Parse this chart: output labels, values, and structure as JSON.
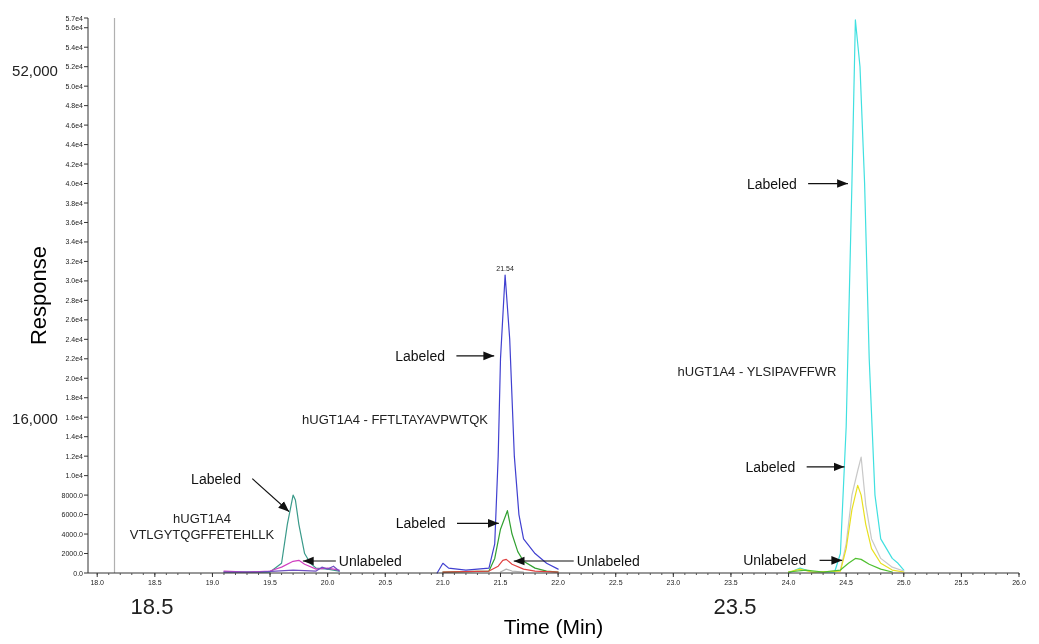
{
  "chart_data": {
    "type": "line",
    "xlabel": "Time (Min)",
    "ylabel": "Response",
    "xlim": [
      17.92,
      26.0
    ],
    "ylim": [
      0,
      57000
    ],
    "xticks": [
      {
        "value": 18,
        "label": "18.0"
      },
      {
        "value": 18.5,
        "label": "18.5"
      },
      {
        "value": 19,
        "label": "19.0"
      },
      {
        "value": 19.5,
        "label": "19.5"
      },
      {
        "value": 20,
        "label": "20.0"
      },
      {
        "value": 20.5,
        "label": "20.5"
      },
      {
        "value": 21,
        "label": "21.0"
      },
      {
        "value": 21.5,
        "label": "21.5"
      },
      {
        "value": 22,
        "label": "22.0"
      },
      {
        "value": 22.5,
        "label": "22.5"
      },
      {
        "value": 23,
        "label": "23.0"
      },
      {
        "value": 23.5,
        "label": "23.5"
      },
      {
        "value": 24,
        "label": "24.0"
      },
      {
        "value": 24.5,
        "label": "24.5"
      },
      {
        "value": 25,
        "label": "25.0"
      },
      {
        "value": 25.5,
        "label": "25.5"
      },
      {
        "value": 26,
        "label": "26.0"
      }
    ],
    "yticks": [
      {
        "value": 0,
        "label": "0.0"
      },
      {
        "value": 2000,
        "label": "2000.0"
      },
      {
        "value": 4000,
        "label": "4000.0"
      },
      {
        "value": 6000,
        "label": "6000.0"
      },
      {
        "value": 8000,
        "label": "8000.0"
      },
      {
        "value": 10000,
        "label": "1.0e4"
      },
      {
        "value": 12000,
        "label": "1.2e4"
      },
      {
        "value": 14000,
        "label": "1.4e4"
      },
      {
        "value": 16000,
        "label": "1.6e4"
      },
      {
        "value": 18000,
        "label": "1.8e4"
      },
      {
        "value": 20000,
        "label": "2.0e4"
      },
      {
        "value": 22000,
        "label": "2.2e4"
      },
      {
        "value": 24000,
        "label": "2.4e4"
      },
      {
        "value": 26000,
        "label": "2.6e4"
      },
      {
        "value": 28000,
        "label": "2.8e4"
      },
      {
        "value": 30000,
        "label": "3.0e4"
      },
      {
        "value": 32000,
        "label": "3.2e4"
      },
      {
        "value": 34000,
        "label": "3.4e4"
      },
      {
        "value": 36000,
        "label": "3.6e4"
      },
      {
        "value": 38000,
        "label": "3.8e4"
      },
      {
        "value": 40000,
        "label": "4.0e4"
      },
      {
        "value": 42000,
        "label": "4.2e4"
      },
      {
        "value": 44000,
        "label": "4.4e4"
      },
      {
        "value": 46000,
        "label": "4.6e4"
      },
      {
        "value": 48000,
        "label": "4.8e4"
      },
      {
        "value": 50000,
        "label": "5.0e4"
      },
      {
        "value": 52000,
        "label": "5.2e4"
      },
      {
        "value": 54000,
        "label": "5.4e4"
      },
      {
        "value": 56000,
        "label": "5.6e4"
      },
      {
        "value": 57000,
        "label": "5.7e4"
      }
    ],
    "grid": false,
    "marker": "none",
    "line_style": "solid",
    "ref_lines": [
      {
        "axis": "x",
        "value": 18.15,
        "color": "#b0b0b0"
      }
    ],
    "series": [
      {
        "color": "#3a9a8a",
        "x": [
          19.1,
          19.3,
          19.5,
          19.6,
          19.65,
          19.7,
          19.72,
          19.75,
          19.8,
          19.85,
          19.9,
          20.0,
          20.1
        ],
        "values": [
          100,
          100,
          100,
          1000,
          5000,
          8000,
          7500,
          5000,
          2000,
          1000,
          500,
          400,
          200
        ]
      },
      {
        "color": "#d040c0",
        "x": [
          19.1,
          19.3,
          19.5,
          19.6,
          19.7,
          19.75,
          19.8,
          19.9,
          20.0,
          20.1
        ],
        "values": [
          200,
          100,
          200,
          600,
          1200,
          1300,
          900,
          400,
          500,
          300
        ]
      },
      {
        "color": "#7050c0",
        "x": [
          19.1,
          19.4,
          19.7,
          19.9,
          19.95,
          20.0,
          20.05,
          20.1
        ],
        "values": [
          100,
          100,
          300,
          200,
          600,
          400,
          700,
          200
        ]
      },
      {
        "color": "#4040d0",
        "x": [
          20.95,
          21.0,
          21.05,
          21.2,
          21.4,
          21.45,
          21.48,
          21.5,
          21.54,
          21.58,
          21.62,
          21.66,
          21.7,
          21.8,
          21.9,
          22.0
        ],
        "values": [
          0,
          1000,
          500,
          300,
          500,
          3000,
          12000,
          22000,
          30600,
          24000,
          12000,
          6000,
          3500,
          2000,
          1000,
          400
        ]
      },
      {
        "color": "#30a030",
        "x": [
          21.0,
          21.4,
          21.45,
          21.5,
          21.56,
          21.6,
          21.65,
          21.7,
          21.8,
          21.9,
          22.0
        ],
        "values": [
          100,
          200,
          1500,
          4500,
          6400,
          4000,
          2200,
          1200,
          500,
          200,
          100
        ]
      },
      {
        "color": "#e04040",
        "x": [
          21.0,
          21.4,
          21.48,
          21.52,
          21.55,
          21.6,
          21.7,
          21.8,
          22.0
        ],
        "values": [
          100,
          200,
          700,
          1300,
          1400,
          900,
          400,
          200,
          100
        ]
      },
      {
        "color": "#b0b0b0",
        "x": [
          21.5,
          21.55,
          21.6,
          21.7
        ],
        "values": [
          100,
          400,
          200,
          100
        ]
      },
      {
        "color": "#40e0e0",
        "x": [
          24.0,
          24.1,
          24.2,
          24.4,
          24.45,
          24.5,
          24.55,
          24.58,
          24.62,
          24.66,
          24.7,
          24.75,
          24.8,
          24.9,
          24.95,
          25.0
        ],
        "values": [
          0,
          500,
          100,
          100,
          2000,
          15000,
          40000,
          56800,
          52000,
          40000,
          22000,
          8000,
          3500,
          1500,
          1000,
          300
        ]
      },
      {
        "color": "#c8c8c8",
        "x": [
          24.45,
          24.5,
          24.55,
          24.6,
          24.63,
          24.67,
          24.72,
          24.8,
          24.9,
          25.0
        ],
        "values": [
          300,
          3000,
          8000,
          10500,
          11900,
          7000,
          3500,
          1500,
          600,
          200
        ]
      },
      {
        "color": "#e8e020",
        "x": [
          24.0,
          24.1,
          24.2,
          24.45,
          24.5,
          24.55,
          24.6,
          24.63,
          24.67,
          24.72,
          24.8,
          24.9,
          25.0
        ],
        "values": [
          100,
          400,
          100,
          200,
          2500,
          6500,
          9000,
          8000,
          5000,
          2500,
          1000,
          300,
          100
        ]
      },
      {
        "color": "#50c030",
        "x": [
          24.0,
          24.15,
          24.3,
          24.45,
          24.52,
          24.58,
          24.63,
          24.7,
          24.8,
          24.9
        ],
        "values": [
          100,
          300,
          100,
          300,
          1000,
          1500,
          1400,
          900,
          400,
          100
        ]
      }
    ],
    "annotations": [
      {
        "text": "Labeled",
        "x": 19.7,
        "y": 6300
      },
      {
        "text": "Unlabeled",
        "x": 19.75,
        "y": 1230
      },
      {
        "text": "Labeled",
        "x": 21.48,
        "y": 22300
      },
      {
        "text": "Labeled",
        "x": 21.52,
        "y": 5100
      },
      {
        "text": "Unlabeled",
        "x": 21.58,
        "y": 1230
      },
      {
        "text": "Labeled",
        "x": 24.55,
        "y": 40000
      },
      {
        "text": "Labeled",
        "x": 24.52,
        "y": 10900
      },
      {
        "text": "Unlabeled",
        "x": 24.5,
        "y": 1300
      },
      {
        "text": "21.54",
        "x": 21.54,
        "y": 30600
      },
      "hUGT1A4\nVTLGYTQGFFETEHLLK",
      "hUGT1A4 - FFTLTAYAVPWTQK",
      "hUGT1A4 - YLSIPAVFFWR",
      "52,000",
      "16,000",
      "18.5",
      "23.5"
    ]
  }
}
